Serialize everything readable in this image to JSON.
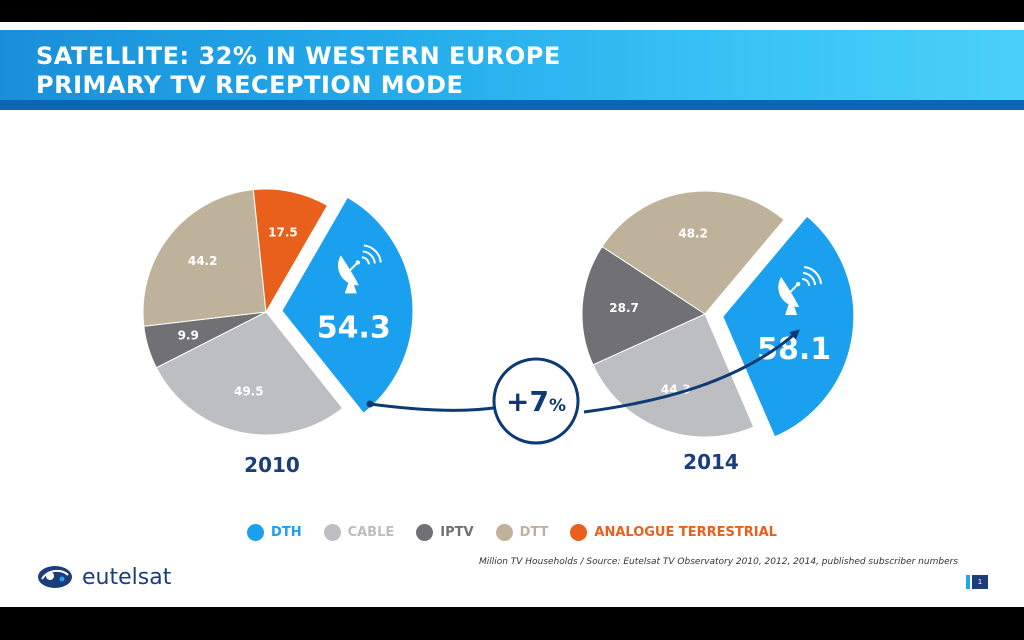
{
  "title": {
    "line1": "SATELLITE: 32% IN WESTERN EUROPE",
    "line2": "PRIMARY TV RECEPTION MODE"
  },
  "chart_data": [
    {
      "type": "pie",
      "title": "2010",
      "categories": [
        "DTH",
        "CABLE",
        "IPTV",
        "DTT",
        "ANALOGUE TERRESTRIAL"
      ],
      "values": [
        54.3,
        49.5,
        9.9,
        44.2,
        17.5
      ],
      "colors": [
        "#1aa0ee",
        "#bdbec1",
        "#717175",
        "#bfb29a",
        "#e8601c"
      ],
      "exploded": "DTH"
    },
    {
      "type": "pie",
      "title": "2014",
      "categories": [
        "DTH",
        "CABLE",
        "IPTV",
        "DTT"
      ],
      "values": [
        58.1,
        44.3,
        28.7,
        48.2
      ],
      "colors": [
        "#1aa0ee",
        "#bdbec1",
        "#717175",
        "#bfb29a"
      ],
      "exploded": "DTH"
    }
  ],
  "growth": "+7",
  "growth_unit": "%",
  "legend": [
    {
      "label": "DTH",
      "color": "#1aa0ee"
    },
    {
      "label": "CABLE",
      "color": "#bdbec1"
    },
    {
      "label": "IPTV",
      "color": "#717175"
    },
    {
      "label": "DTT",
      "color": "#bfb29a"
    },
    {
      "label": "ANALOGUE TERRESTRIAL",
      "color": "#e8601c"
    }
  ],
  "source": "Million TV Households / Source: Eutelsat TV Observatory 2010, 2012, 2014, published subscriber numbers",
  "logo_text": "eutelsat",
  "page_number": "1",
  "colors": {
    "navy": "#0d3a74",
    "brand": "#1b3e7a"
  }
}
